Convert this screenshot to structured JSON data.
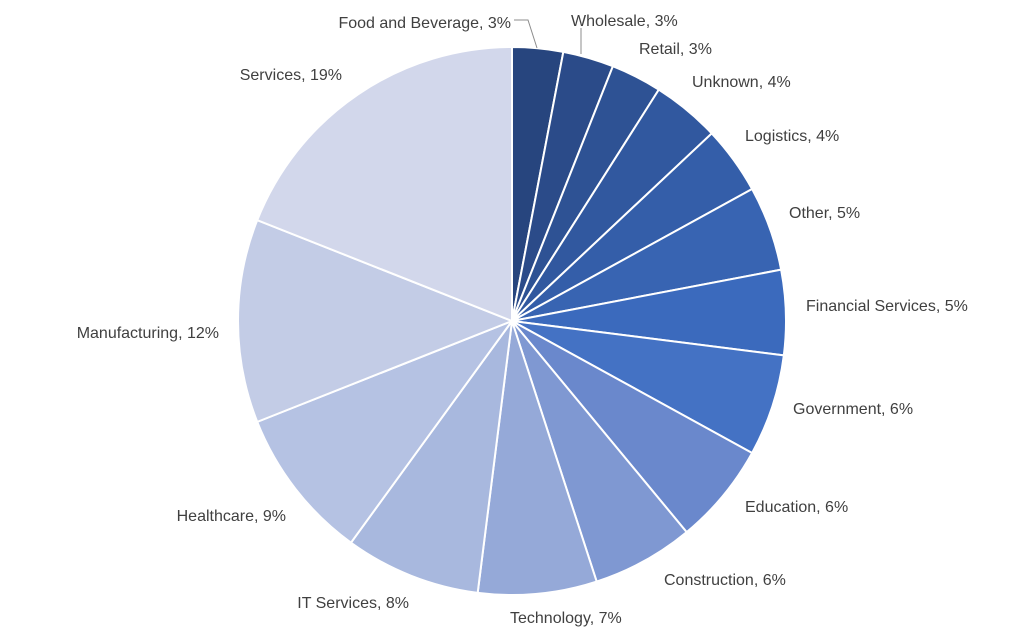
{
  "chart_data": {
    "type": "pie",
    "title": "",
    "start_angle": "12 o'clock",
    "direction": "clockwise",
    "slices": [
      {
        "label": "Food and Beverage",
        "value": 3,
        "display": "Food and Beverage, 3%",
        "color": "#27457e"
      },
      {
        "label": "Wholesale",
        "value": 3,
        "display": "Wholesale, 3%",
        "color": "#2b4b89"
      },
      {
        "label": "Retail",
        "value": 3,
        "display": "Retail, 3%",
        "color": "#2e5294"
      },
      {
        "label": "Unknown",
        "value": 4,
        "display": "Unknown, 4%",
        "color": "#31589f"
      },
      {
        "label": "Logistics",
        "value": 4,
        "display": "Logistics, 4%",
        "color": "#345ea9"
      },
      {
        "label": "Other",
        "value": 5,
        "display": "Other, 5%",
        "color": "#3864b2"
      },
      {
        "label": "Financial Services",
        "value": 5,
        "display": "Financial Services, 5%",
        "color": "#3b6abd"
      },
      {
        "label": "Government",
        "value": 6,
        "display": "Government, 6%",
        "color": "#4472c4"
      },
      {
        "label": "Education",
        "value": 6,
        "display": "Education, 6%",
        "color": "#6a88cc"
      },
      {
        "label": "Construction",
        "value": 6,
        "display": "Construction, 6%",
        "color": "#7f98d2"
      },
      {
        "label": "Technology",
        "value": 7,
        "display": "Technology, 7%",
        "color": "#95a9d8"
      },
      {
        "label": "IT Services",
        "value": 8,
        "display": "IT Services, 8%",
        "color": "#a8b8de"
      },
      {
        "label": "Healthcare",
        "value": 9,
        "display": "Healthcare, 9%",
        "color": "#b5c2e3"
      },
      {
        "label": "Manufacturing",
        "value": 12,
        "display": "Manufacturing, 12%",
        "color": "#c3cce6"
      },
      {
        "label": "Services",
        "value": 19,
        "display": "Services, 19%",
        "color": "#d2d7eb"
      }
    ]
  }
}
